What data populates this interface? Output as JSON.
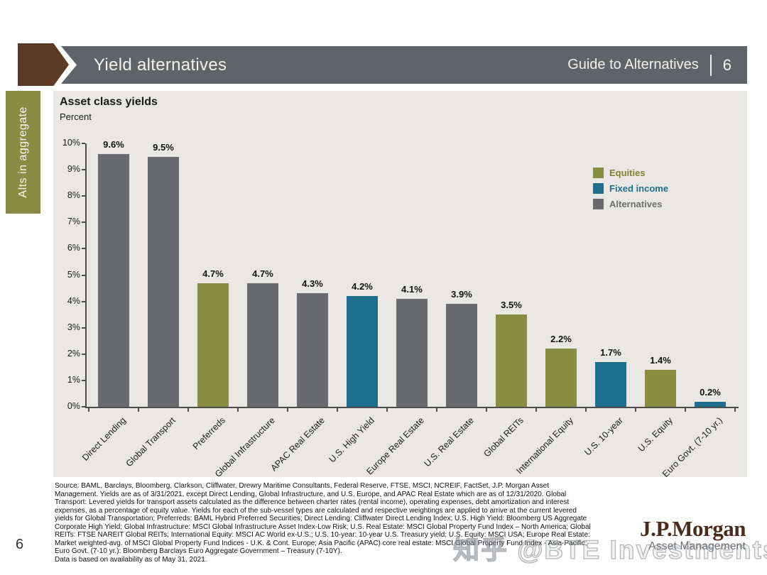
{
  "page": {
    "number": "6"
  },
  "header": {
    "title": "Yield alternatives",
    "right_label": "Guide to Alternatives",
    "page_num": "6"
  },
  "sidebar": {
    "tab_label": "Alts in aggregate"
  },
  "chart": {
    "title": "Asset class yields",
    "subtitle": "Percent"
  },
  "chart_data": {
    "type": "bar",
    "title": "Asset class yields",
    "ylabel": "Percent",
    "ylim": [
      0,
      10
    ],
    "ytick_labels": [
      "0%",
      "1%",
      "2%",
      "3%",
      "4%",
      "5%",
      "6%",
      "7%",
      "8%",
      "9%",
      "10%"
    ],
    "grid": false,
    "legend_position": "upper right",
    "categories": [
      "Direct Lending",
      "Global Transport",
      "Preferreds",
      "Global Infrastructure",
      "APAC Real Estate",
      "U.S. High Yield",
      "Europe Real Estate",
      "U.S. Real Estate",
      "Global REITs",
      "International Equity",
      "U.S. 10-year",
      "U.S. Equity",
      "Euro Govt. (7-10 yr.)"
    ],
    "values": [
      9.6,
      9.5,
      4.7,
      4.7,
      4.3,
      4.2,
      4.1,
      3.9,
      3.5,
      2.2,
      1.7,
      1.4,
      0.2
    ],
    "value_labels": [
      "9.6%",
      "9.5%",
      "4.7%",
      "4.7%",
      "4.3%",
      "4.2%",
      "4.1%",
      "3.9%",
      "3.5%",
      "2.2%",
      "1.7%",
      "1.4%",
      "0.2%"
    ],
    "bar_groups": [
      "Alternatives",
      "Alternatives",
      "Equities",
      "Alternatives",
      "Alternatives",
      "Fixed income",
      "Alternatives",
      "Alternatives",
      "Equities",
      "Equities",
      "Fixed income",
      "Equities",
      "Fixed income"
    ]
  },
  "legend": [
    {
      "label": "Equities",
      "color": "#8a8c3f",
      "text_color": "#7d7f35"
    },
    {
      "label": "Fixed income",
      "color": "#1e6e8e",
      "text_color": "#1e6e8e"
    },
    {
      "label": "Alternatives",
      "color": "#696a6d",
      "text_color": "#6d6e71"
    }
  ],
  "palette": {
    "header_bar": "#606367",
    "header_arrow": "#5b3a26",
    "sidebar_tab": "#8a8c44",
    "panel_background": "#e9e8e4",
    "equities": "#8a8c3f",
    "fixed_income": "#1e6e8e",
    "alternatives": "#696a6d",
    "logo_brown": "#4b2b19"
  },
  "footnote": {
    "lines": [
      "Source: BAML, Barclays, Bloomberg, Clarkson, Cliffwater, Drewry Maritime Consultants, Federal Reserve, FTSE, MSCI, NCREIF, FactSet, J.P. Morgan Asset",
      "Management. Yields are as of 3/31/2021, except Direct Lending, Global Infrastructure, and U.S, Europe, and APAC Real Estate which are as of 12/31/2020. Global",
      "Transport: Levered yields for transport assets calculated as the difference between charter rates (rental income), operating expenses, debt amortization and interest",
      "expenses, as a percentage of equity value. Yields for each of the sub-vessel types are calculated and respective weightings are applied to arrive at the current levered",
      "yields for Global Transportation; Preferreds: BAML Hybrid Preferred Securities; Direct Lending: Cliffwater Direct Lending Index; U.S. High Yield: Bloomberg US Aggregate",
      "Corporate High Yield; Global Infrastructure: MSCI Global Infrastructure Asset Index-Low Risk; U.S. Real Estate: MSCI Global Property Fund Index – North America; Global",
      "REITs: FTSE NAREIT Global REITs; International Equity: MSCI AC World ex-U.S.; U.S. 10-year: 10-year U.S. Treasury yield; U.S. Equity: MSCI USA; Europe Real Estate:",
      "Market weighted-avg. of MSCI Global Property Fund Indices - U.K. & Cont. Europe; Asia Pacific (APAC) core real estate: MSCI Global Property Fund Index - Asia-Pacific;",
      "Euro Govt. (7-10 yr.): Bloomberg Barclays Euro Aggregate Government – Treasury (7-10Y).",
      "Data is based on availability as of May 31, 2021."
    ]
  },
  "logo": {
    "main": "J.P.Morgan",
    "sub": "Asset Management"
  },
  "watermark": {
    "text": "知乎 @BTE Investments"
  }
}
